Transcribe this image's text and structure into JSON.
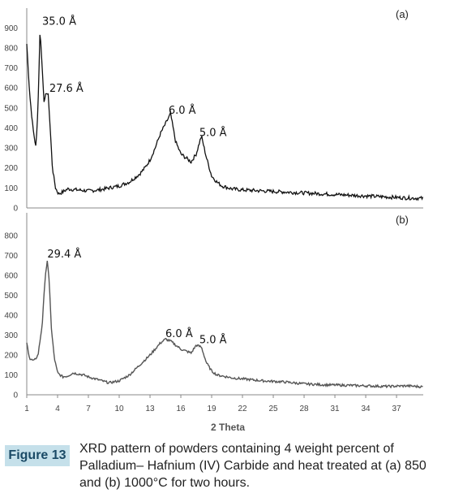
{
  "chart_data": [
    {
      "type": "line",
      "panel_label": "(a)",
      "xlabel": "2 Theta",
      "ylabel": "",
      "ylim": [
        0,
        950
      ],
      "y_ticks": [
        "0",
        "100",
        "200",
        "300",
        "400",
        "500",
        "600",
        "700",
        "800",
        "900"
      ],
      "peak_labels": [
        {
          "text": "35.0 Å",
          "x": 2.5,
          "y": 915
        },
        {
          "text": "27.6 Å",
          "x": 3.2,
          "y": 580
        },
        {
          "text": "6.0 Å",
          "x": 14.8,
          "y": 470
        },
        {
          "text": "5.0 Å",
          "x": 17.8,
          "y": 360
        }
      ],
      "series": [
        {
          "x": [
            1,
            1.3,
            1.6,
            1.9,
            2.1,
            2.3,
            2.5,
            2.7,
            2.9,
            3.1,
            3.3,
            3.5,
            3.8,
            4.1,
            4.5,
            5,
            6,
            7,
            8,
            9,
            10,
            11,
            12,
            12.5,
            13,
            13.5,
            14,
            14.5,
            15,
            15.5,
            16,
            16.5,
            17,
            17.5,
            18,
            18.5,
            19,
            19.5,
            20,
            21,
            22,
            24,
            26,
            28,
            30,
            32,
            34,
            36,
            38,
            39.6
          ],
          "y": [
            820,
            560,
            400,
            300,
            520,
            900,
            700,
            520,
            580,
            560,
            380,
            200,
            100,
            70,
            80,
            95,
            90,
            85,
            90,
            100,
            110,
            130,
            170,
            200,
            240,
            300,
            370,
            420,
            470,
            330,
            270,
            250,
            230,
            270,
            360,
            250,
            160,
            130,
            110,
            95,
            90,
            85,
            80,
            75,
            70,
            65,
            60,
            55,
            50,
            48
          ]
        }
      ]
    },
    {
      "type": "line",
      "panel_label": "(b)",
      "xlabel": "2 Theta",
      "ylabel": "",
      "ylim": [
        0,
        850
      ],
      "y_ticks": [
        "0",
        "100",
        "200",
        "300",
        "400",
        "500",
        "600",
        "700",
        "800"
      ],
      "x_ticks": [
        "1",
        "4",
        "7",
        "10",
        "13",
        "16",
        "19",
        "22",
        "25",
        "28",
        "31",
        "34",
        "37"
      ],
      "peak_labels": [
        {
          "text": "29.4 Å",
          "x": 3.0,
          "y": 690
        },
        {
          "text": "6.0 Å",
          "x": 14.5,
          "y": 290
        },
        {
          "text": "5.0 Å",
          "x": 17.8,
          "y": 260
        }
      ],
      "series": [
        {
          "x": [
            1,
            1.3,
            1.7,
            2.1,
            2.5,
            2.8,
            3.0,
            3.2,
            3.4,
            3.7,
            4.0,
            4.5,
            5,
            5.5,
            6,
            6.5,
            7,
            8,
            9,
            10,
            11,
            12,
            13,
            13.5,
            14,
            14.5,
            15,
            15.5,
            16,
            16.5,
            17,
            17.5,
            18,
            18.5,
            19,
            19.5,
            20,
            21,
            22,
            24,
            26,
            28,
            30,
            32,
            34,
            36,
            38,
            39.6
          ],
          "y": [
            260,
            180,
            170,
            200,
            350,
            600,
            670,
            560,
            330,
            180,
            110,
            90,
            95,
            110,
            105,
            100,
            90,
            75,
            60,
            70,
            100,
            150,
            200,
            230,
            260,
            280,
            270,
            250,
            230,
            220,
            210,
            250,
            240,
            160,
            120,
            100,
            95,
            85,
            80,
            70,
            65,
            55,
            50,
            48,
            45,
            42,
            45,
            40
          ]
        }
      ]
    }
  ],
  "caption": {
    "label": "Figure 13",
    "text": "XRD pattern of powders containing 4 weight percent of Palladium– Hafnium (IV) Carbide and heat treated at (a) 850 and (b) 1000°C for two hours."
  }
}
